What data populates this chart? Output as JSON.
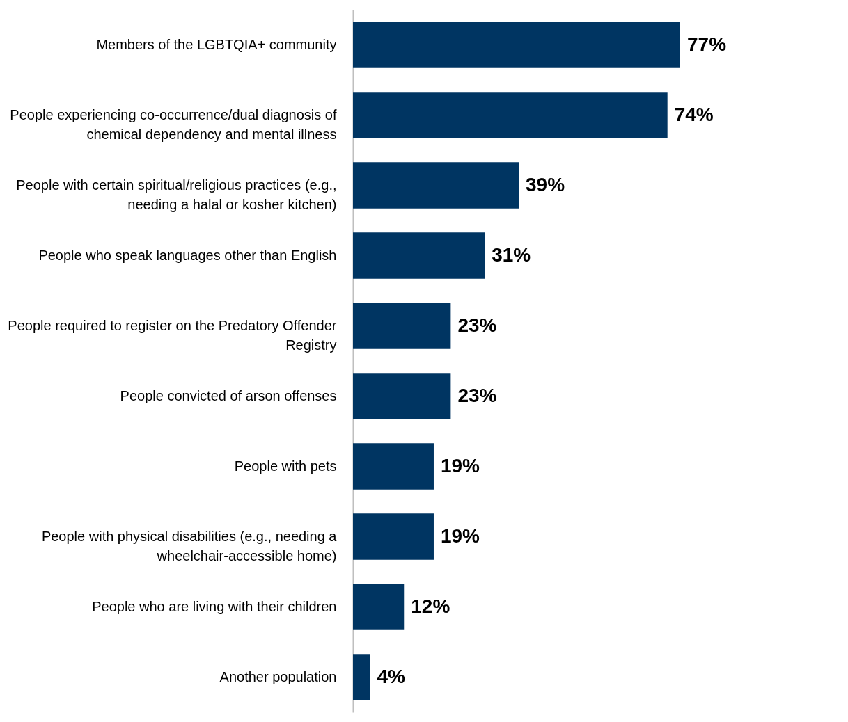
{
  "chart_data": {
    "type": "bar",
    "orientation": "horizontal",
    "categories": [
      "Members of the LGBTQIA+ community",
      "People experiencing co-occurrence/dual diagnosis of chemical dependency and mental illness",
      "People with certain spiritual/religious practices (e.g., needing a halal or kosher kitchen)",
      "People who speak languages other than English",
      "People required to register on the Predatory Offender Registry",
      "People convicted of arson offenses",
      "People with pets",
      "People with physical disabilities (e.g., needing a wheelchair-accessible home)",
      "People who are living with their children",
      "Another population"
    ],
    "values": [
      77,
      74,
      39,
      31,
      23,
      23,
      19,
      19,
      12,
      4
    ],
    "value_labels": [
      "77%",
      "74%",
      "39%",
      "31%",
      "23%",
      "23%",
      "19%",
      "19%",
      "12%",
      "4%"
    ],
    "color": "#003562",
    "tick_labels": "y"
  }
}
